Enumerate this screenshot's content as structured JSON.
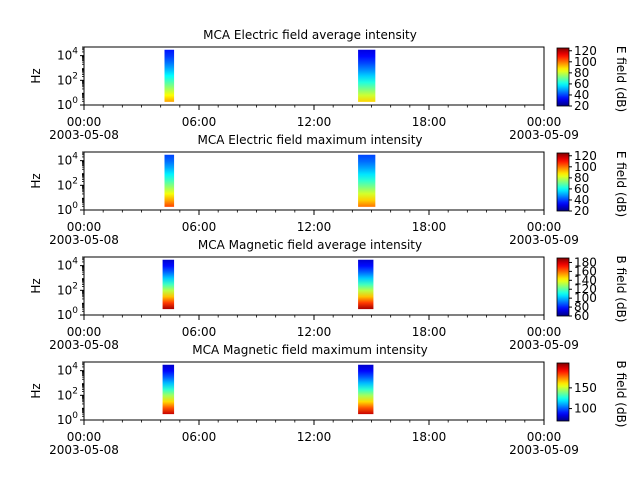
{
  "chart_data": [
    {
      "type": "heatmap",
      "title": "MCA  Electric field average intensity",
      "ylabel": "Hz",
      "y_scale": "log",
      "y_ticks": [
        {
          "base": "10",
          "exp": "0"
        },
        {
          "base": "10",
          "exp": "2"
        },
        {
          "base": "10",
          "exp": "4"
        }
      ],
      "x_ticks": [
        "00:00",
        "06:00",
        "12:00",
        "18:00",
        "00:00"
      ],
      "x_dates": [
        "2003-05-08",
        "",
        "",
        "",
        "2003-05-09"
      ],
      "xlim_hours": [
        0,
        24
      ],
      "colorbar": {
        "label": "E field (dB)",
        "range": [
          20,
          125
        ],
        "ticks": [
          "120",
          "100",
          "80",
          "60",
          "40",
          "20"
        ],
        "tick_values": [
          120,
          100,
          80,
          60,
          40,
          20
        ],
        "colormap": "jet"
      },
      "passes": [
        {
          "start_hour": 4.2,
          "end_hour": 4.7,
          "freq_low_hz": 1.8,
          "freq_high_hz": 30000,
          "intensity_top_db": 35,
          "intensity_bottom_db": 95
        },
        {
          "start_hour": 14.3,
          "end_hour": 15.2,
          "freq_low_hz": 1.8,
          "freq_high_hz": 30000,
          "intensity_top_db": 30,
          "intensity_bottom_db": 90
        }
      ]
    },
    {
      "type": "heatmap",
      "title": "MCA  Electric field maximum intensity",
      "ylabel": "Hz",
      "y_scale": "log",
      "y_ticks": [
        {
          "base": "10",
          "exp": "0"
        },
        {
          "base": "10",
          "exp": "2"
        },
        {
          "base": "10",
          "exp": "4"
        }
      ],
      "x_ticks": [
        "00:00",
        "06:00",
        "12:00",
        "18:00",
        "00:00"
      ],
      "x_dates": [
        "2003-05-08",
        "",
        "",
        "",
        "2003-05-09"
      ],
      "xlim_hours": [
        0,
        24
      ],
      "colorbar": {
        "label": "E field (dB)",
        "range": [
          20,
          125
        ],
        "ticks": [
          "120",
          "100",
          "80",
          "60",
          "40",
          "20"
        ],
        "tick_values": [
          120,
          100,
          80,
          60,
          40,
          20
        ],
        "colormap": "jet"
      },
      "passes": [
        {
          "start_hour": 4.2,
          "end_hour": 4.7,
          "freq_low_hz": 1.8,
          "freq_high_hz": 30000,
          "intensity_top_db": 40,
          "intensity_bottom_db": 105
        },
        {
          "start_hour": 14.3,
          "end_hour": 15.2,
          "freq_low_hz": 1.8,
          "freq_high_hz": 30000,
          "intensity_top_db": 40,
          "intensity_bottom_db": 100
        }
      ]
    },
    {
      "type": "heatmap",
      "title": "MCA  Magnetic field average intensity",
      "ylabel": "Hz",
      "y_scale": "log",
      "y_ticks": [
        {
          "base": "10",
          "exp": "0"
        },
        {
          "base": "10",
          "exp": "2"
        },
        {
          "base": "10",
          "exp": "4"
        }
      ],
      "x_ticks": [
        "00:00",
        "06:00",
        "12:00",
        "18:00",
        "00:00"
      ],
      "x_dates": [
        "2003-05-08",
        "",
        "",
        "",
        "2003-05-09"
      ],
      "xlim_hours": [
        0,
        24
      ],
      "colorbar": {
        "label": "B field (dB)",
        "range": [
          60,
          190
        ],
        "ticks": [
          "180",
          "160",
          "140",
          "120",
          "100",
          "80",
          "60"
        ],
        "tick_values": [
          180,
          160,
          140,
          120,
          100,
          80,
          60
        ],
        "colormap": "jet"
      },
      "passes": [
        {
          "start_hour": 4.1,
          "end_hour": 4.7,
          "freq_low_hz": 3,
          "freq_high_hz": 30000,
          "intensity_top_db": 70,
          "intensity_bottom_db": 185
        },
        {
          "start_hour": 14.3,
          "end_hour": 15.1,
          "freq_low_hz": 3,
          "freq_high_hz": 30000,
          "intensity_top_db": 70,
          "intensity_bottom_db": 185
        }
      ]
    },
    {
      "type": "heatmap",
      "title": "MCA  Magnetic field maximum intensity",
      "ylabel": "Hz",
      "y_scale": "log",
      "y_ticks": [
        {
          "base": "10",
          "exp": "0"
        },
        {
          "base": "10",
          "exp": "2"
        },
        {
          "base": "10",
          "exp": "4"
        }
      ],
      "x_ticks": [
        "00:00",
        "06:00",
        "12:00",
        "18:00",
        "00:00"
      ],
      "x_dates": [
        "2003-05-08",
        "",
        "",
        "",
        "2003-05-09"
      ],
      "xlim_hours": [
        0,
        24
      ],
      "colorbar": {
        "label": "B field (dB)",
        "range": [
          70,
          210
        ],
        "ticks": [
          "150",
          "100"
        ],
        "tick_values": [
          150,
          100
        ],
        "colormap": "jet"
      },
      "passes": [
        {
          "start_hour": 4.1,
          "end_hour": 4.7,
          "freq_low_hz": 3,
          "freq_high_hz": 30000,
          "intensity_top_db": 80,
          "intensity_bottom_db": 200
        },
        {
          "start_hour": 14.3,
          "end_hour": 15.1,
          "freq_low_hz": 3,
          "freq_high_hz": 30000,
          "intensity_top_db": 80,
          "intensity_bottom_db": 200
        }
      ]
    }
  ]
}
